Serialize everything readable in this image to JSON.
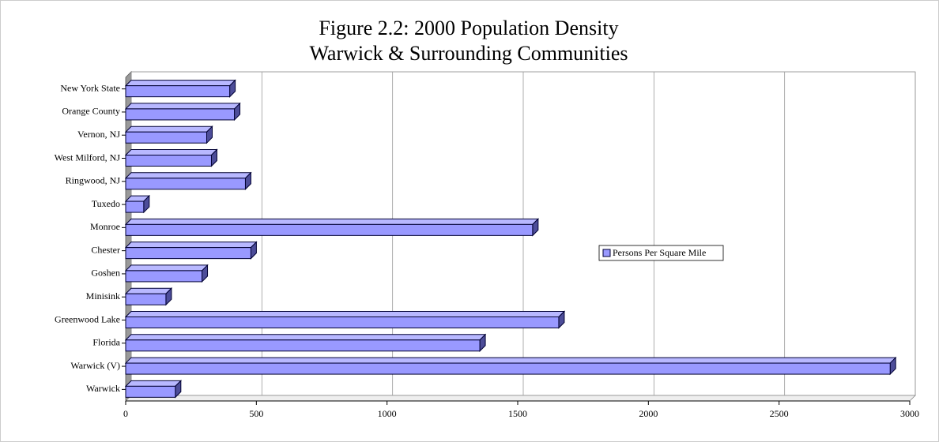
{
  "chart_data": {
    "type": "bar",
    "orientation": "horizontal",
    "title": [
      "Figure 2.2:  2000 Population Density",
      "Warwick & Surrounding Communities"
    ],
    "categories": [
      "New York State",
      "Orange County",
      "Vernon, NJ",
      "West Milford, NJ",
      "Ringwood, NJ",
      "Tuxedo",
      "Monroe",
      "Chester",
      "Goshen",
      "Minisink",
      "Greenwood Lake",
      "Florida",
      "Warwick (V)",
      "Warwick"
    ],
    "series": [
      {
        "name": "Persons Per Square Mile",
        "color": "#9999ff",
        "values": [
          398,
          416,
          310,
          328,
          458,
          69,
          1557,
          479,
          292,
          154,
          1657,
          1355,
          2925,
          190
        ]
      }
    ],
    "xlim": [
      0,
      3000
    ],
    "xticks": [
      0,
      500,
      1000,
      1500,
      2000,
      2500,
      3000
    ],
    "grid": true,
    "legend": "right"
  }
}
